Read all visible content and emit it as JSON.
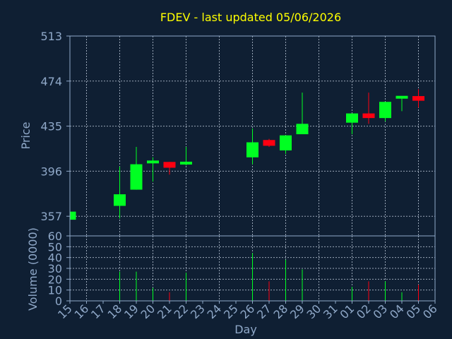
{
  "chart_data": {
    "type": "candlestick",
    "title": "FDEV - last updated 05/06/2026",
    "xlabel": "Day",
    "ylabel": "Price",
    "volume_label": "Volume (0000)",
    "grid": true,
    "colors": {
      "up": "#00ff22",
      "down": "#ff0011",
      "background": "#0f1f33",
      "axis": "#8fa8c8",
      "title": "#ffff00"
    },
    "price_range": [
      340,
      513
    ],
    "price_ticks": [
      357,
      396,
      435,
      474,
      513
    ],
    "volume_range": [
      0,
      60
    ],
    "volume_ticks": [
      0,
      10,
      20,
      30,
      40,
      50,
      60
    ],
    "x_ticks": [
      "15",
      "16",
      "17",
      "18",
      "19",
      "20",
      "21",
      "22",
      "23",
      "24",
      "25",
      "26",
      "27",
      "28",
      "29",
      "30",
      "31",
      "01",
      "02",
      "03",
      "04",
      "05",
      "06"
    ],
    "candles": [
      {
        "day": "15",
        "open": 354,
        "high": 361,
        "low": 354,
        "close": 361,
        "volume": 2
      },
      {
        "day": "18",
        "open": 366,
        "high": 400,
        "low": 355,
        "close": 376,
        "volume": 27
      },
      {
        "day": "19",
        "open": 380,
        "high": 417,
        "low": 380,
        "close": 402,
        "volume": 27
      },
      {
        "day": "20",
        "open": 403,
        "high": 408,
        "low": 387,
        "close": 405,
        "volume": 12
      },
      {
        "day": "21",
        "open": 404,
        "high": 404,
        "low": 393,
        "close": 399,
        "volume": 8
      },
      {
        "day": "22",
        "open": 402,
        "high": 417,
        "low": 401,
        "close": 404,
        "volume": 26
      },
      {
        "day": "26",
        "open": 408,
        "high": 433,
        "low": 402,
        "close": 421,
        "volume": 44
      },
      {
        "day": "27",
        "open": 423,
        "high": 424,
        "low": 417,
        "close": 418,
        "volume": 18
      },
      {
        "day": "28",
        "open": 414,
        "high": 427,
        "low": 411,
        "close": 427,
        "volume": 38
      },
      {
        "day": "29",
        "open": 428,
        "high": 464,
        "low": 428,
        "close": 437,
        "volume": 29
      },
      {
        "day": "01",
        "open": 438,
        "high": 446,
        "low": 428,
        "close": 446,
        "volume": 13
      },
      {
        "day": "02",
        "open": 446,
        "high": 464,
        "low": 437,
        "close": 442,
        "volume": 18
      },
      {
        "day": "03",
        "open": 442,
        "high": 456,
        "low": 439,
        "close": 456,
        "volume": 18
      },
      {
        "day": "04",
        "open": 459,
        "high": 461,
        "low": 448,
        "close": 461,
        "volume": 8
      },
      {
        "day": "05",
        "open": 461,
        "high": 467,
        "low": 451,
        "close": 457,
        "volume": 15
      }
    ]
  }
}
